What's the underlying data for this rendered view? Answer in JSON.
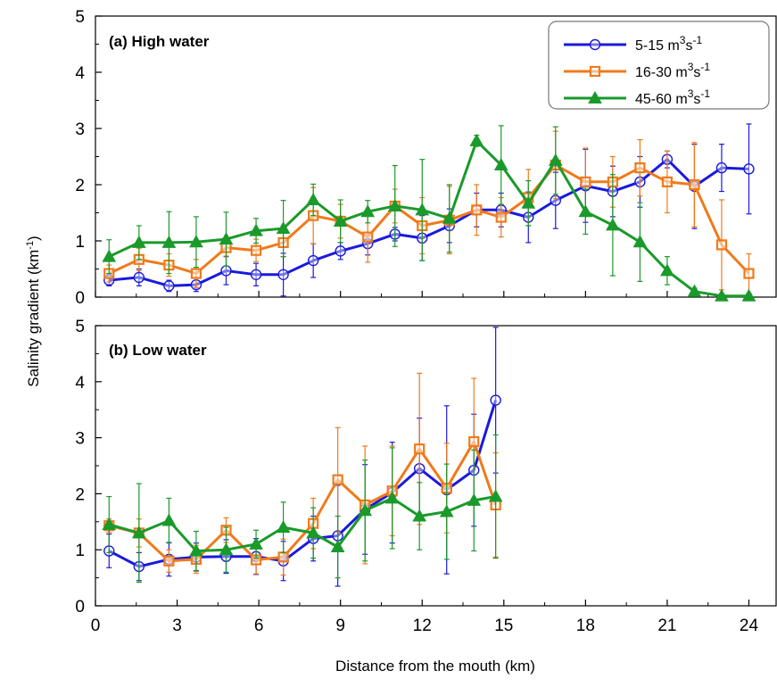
{
  "chart_data": {
    "type": "line",
    "xlabel": "Distance from the mouth (km)",
    "ylabel": "Salinity gradient (km",
    "ylabel_sup": "-1",
    "ylabel_end": ")",
    "xlim": [
      0,
      25
    ],
    "ylim": [
      0,
      5
    ],
    "x_ticks": [
      0,
      3,
      6,
      9,
      12,
      15,
      18,
      21,
      24
    ],
    "y_ticks": [
      0,
      1,
      2,
      3,
      4,
      5
    ],
    "grid": false,
    "legend_position": "top-right",
    "colors": {
      "blue": "#1a1adb",
      "orange": "#f07a1a",
      "green": "#1a9a2a"
    },
    "legend": [
      {
        "series": "blue",
        "prefix": "5-15 m",
        "sup1": "3",
        "mid": "s",
        "sup2": "-1",
        "marker": "circle"
      },
      {
        "series": "orange",
        "prefix": "16-30 m",
        "sup1": "3",
        "mid": "s",
        "sup2": "-1",
        "marker": "square"
      },
      {
        "series": "green",
        "prefix": "45-60 m",
        "sup1": "3",
        "mid": "s",
        "sup2": "-1",
        "marker": "triangle"
      }
    ],
    "panels": [
      {
        "label": "(a) High water",
        "series": [
          {
            "key": "blue",
            "marker": "circle",
            "x": [
              0.5,
              1.6,
              2.7,
              3.7,
              4.8,
              5.9,
              6.9,
              8.0,
              9.0,
              10.0,
              11.0,
              12.0,
              13.0,
              14.0,
              14.9,
              15.9,
              16.9,
              18.0,
              19.0,
              20.0,
              21.0,
              22.0,
              23.0,
              24.0
            ],
            "y": [
              0.3,
              0.35,
              0.2,
              0.22,
              0.47,
              0.4,
              0.4,
              0.65,
              0.82,
              0.95,
              1.12,
              1.05,
              1.27,
              1.55,
              1.55,
              1.42,
              1.72,
              1.98,
              1.88,
              2.05,
              2.45,
              1.97,
              2.3,
              2.28
            ],
            "err": [
              0.1,
              0.15,
              0.1,
              0.12,
              0.25,
              0.2,
              0.38,
              0.3,
              0.15,
              0.2,
              0.12,
              0.4,
              0.3,
              0.3,
              0.3,
              0.45,
              0.5,
              0.65,
              0.45,
              0.45,
              0.15,
              0.75,
              0.42,
              0.8
            ]
          },
          {
            "key": "orange",
            "marker": "square",
            "x": [
              0.5,
              1.6,
              2.7,
              3.7,
              4.8,
              5.9,
              6.9,
              8.0,
              9.0,
              10.0,
              11.0,
              12.0,
              13.0,
              14.0,
              14.9,
              15.9,
              16.9,
              18.0,
              19.0,
              20.0,
              21.0,
              22.0,
              23.0,
              24.0
            ],
            "y": [
              0.42,
              0.67,
              0.57,
              0.42,
              0.88,
              0.83,
              0.97,
              1.45,
              1.35,
              1.07,
              1.62,
              1.27,
              1.37,
              1.55,
              1.42,
              1.77,
              2.35,
              2.05,
              2.05,
              2.3,
              2.05,
              2.0,
              0.93,
              0.42
            ],
            "err": [
              0.15,
              0.2,
              0.2,
              0.25,
              0.15,
              0.2,
              0.25,
              0.5,
              0.3,
              0.45,
              0.3,
              0.5,
              0.6,
              0.45,
              0.35,
              0.5,
              0.6,
              0.6,
              0.45,
              0.5,
              0.55,
              0.75,
              0.8,
              0.35
            ]
          },
          {
            "key": "green",
            "marker": "triangle",
            "x": [
              0.5,
              1.6,
              2.7,
              3.7,
              4.8,
              5.9,
              6.9,
              8.0,
              9.0,
              10.0,
              11.0,
              12.0,
              13.0,
              14.0,
              14.9,
              15.9,
              16.9,
              18.0,
              19.0,
              20.0,
              21.0,
              22.0,
              23.0,
              24.0
            ],
            "y": [
              0.72,
              0.97,
              0.97,
              0.98,
              1.03,
              1.18,
              1.22,
              1.73,
              1.35,
              1.52,
              1.62,
              1.55,
              1.4,
              2.78,
              2.35,
              1.67,
              2.43,
              1.52,
              1.28,
              0.98,
              0.47,
              0.1,
              0.02,
              0.02
            ],
            "err": [
              0.3,
              0.3,
              0.55,
              0.45,
              0.48,
              0.22,
              0.5,
              0.28,
              0.38,
              0.2,
              0.72,
              0.9,
              0.6,
              0.1,
              0.7,
              0.4,
              0.6,
              0.4,
              0.9,
              0.7,
              0.25,
              0.06,
              0.02,
              0.02
            ]
          }
        ]
      },
      {
        "label": "(b) Low water",
        "series": [
          {
            "key": "blue",
            "marker": "circle",
            "x": [
              0.5,
              1.6,
              2.7,
              3.7,
              4.8,
              5.9,
              6.9,
              8.0,
              8.9,
              9.9,
              10.9,
              11.9,
              12.9,
              13.9,
              14.7
            ],
            "y": [
              0.98,
              0.7,
              0.83,
              0.87,
              0.88,
              0.88,
              0.8,
              1.2,
              1.25,
              1.72,
              2.02,
              2.45,
              2.07,
              2.42,
              3.67
            ],
            "err": [
              0.3,
              0.25,
              0.3,
              0.25,
              0.3,
              0.32,
              0.35,
              0.4,
              0.9,
              0.8,
              0.9,
              0.9,
              1.5,
              1.0,
              1.3
            ]
          },
          {
            "key": "orange",
            "marker": "square",
            "x": [
              0.5,
              1.6,
              2.7,
              3.7,
              4.8,
              5.9,
              6.9,
              8.0,
              8.9,
              9.9,
              10.9,
              11.9,
              12.9,
              13.9,
              14.7
            ],
            "y": [
              1.43,
              1.3,
              0.8,
              0.83,
              1.35,
              0.82,
              0.87,
              1.47,
              2.25,
              1.8,
              2.05,
              2.8,
              2.1,
              2.93,
              1.8
            ],
            "err": [
              0.12,
              0.25,
              0.2,
              0.25,
              0.22,
              0.25,
              0.32,
              0.45,
              0.93,
              1.05,
              0.8,
              1.35,
              0.8,
              1.13,
              0.93
            ]
          },
          {
            "key": "green",
            "marker": "triangle",
            "x": [
              0.5,
              1.6,
              2.7,
              3.7,
              4.8,
              5.9,
              6.9,
              8.0,
              8.9,
              9.9,
              10.9,
              11.9,
              12.9,
              13.9,
              14.7
            ],
            "y": [
              1.45,
              1.3,
              1.52,
              0.98,
              1.0,
              1.1,
              1.4,
              1.3,
              1.05,
              1.7,
              1.92,
              1.6,
              1.68,
              1.88,
              1.95
            ],
            "err": [
              0.5,
              0.88,
              0.4,
              0.35,
              0.4,
              0.25,
              0.45,
              0.45,
              0.55,
              0.9,
              0.9,
              0.6,
              0.85,
              0.9,
              1.1
            ]
          }
        ]
      }
    ]
  }
}
